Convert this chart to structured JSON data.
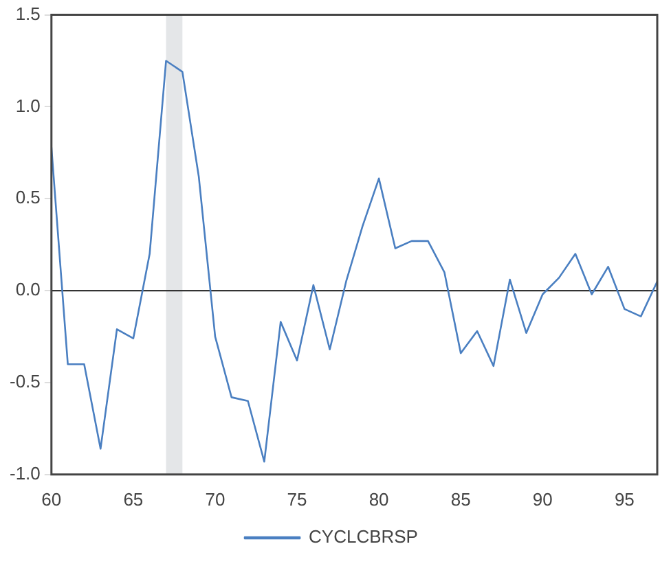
{
  "chart_data": {
    "type": "line",
    "x": [
      60,
      61,
      62,
      63,
      64,
      65,
      66,
      67,
      68,
      69,
      70,
      71,
      72,
      73,
      74,
      75,
      76,
      77,
      78,
      79,
      80,
      81,
      82,
      83,
      84,
      85,
      86,
      87,
      88,
      89,
      90,
      91,
      92,
      93,
      94,
      95,
      96,
      97
    ],
    "series": [
      {
        "name": "CYCLCBRSP",
        "color": "#4a7fc1",
        "values": [
          0.78,
          -0.4,
          -0.4,
          -0.86,
          -0.21,
          -0.26,
          0.2,
          1.25,
          1.19,
          0.62,
          -0.25,
          -0.58,
          -0.6,
          -0.93,
          -0.17,
          -0.38,
          0.03,
          -0.32,
          0.05,
          0.35,
          0.61,
          0.23,
          0.27,
          0.27,
          0.1,
          -0.34,
          -0.22,
          -0.41,
          0.06,
          -0.23,
          -0.02,
          0.07,
          0.2,
          -0.02,
          0.13,
          -0.1,
          -0.14,
          0.05
        ]
      }
    ],
    "xlim": [
      60,
      97
    ],
    "xticks": [
      60,
      65,
      70,
      75,
      80,
      85,
      90,
      95
    ],
    "ylim": [
      -1.0,
      1.5
    ],
    "yticks": [
      {
        "value": -1.0,
        "label": "-1.0"
      },
      {
        "value": -0.5,
        "label": "-0.5"
      },
      {
        "value": 0,
        "label": "0.0"
      },
      {
        "value": 0.5,
        "label": "0.5"
      },
      {
        "value": 1.0,
        "label": "1.0"
      },
      {
        "value": 1.5,
        "label": "1.5"
      }
    ],
    "ref_lines": [
      {
        "axis": "y",
        "value": 0,
        "color": "#333333"
      }
    ],
    "bands": [
      {
        "axis": "x",
        "from": 67,
        "to": 68,
        "color": "#e4e6e8"
      }
    ],
    "grid": false,
    "legend": "bottom",
    "marker": "none",
    "line_style": "solid"
  }
}
